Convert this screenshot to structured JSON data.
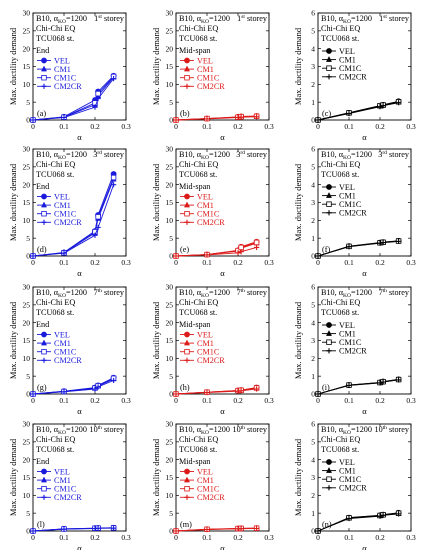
{
  "figure": {
    "ylabel": "Max. ductility demand",
    "xlabel": "α",
    "model": "B10, α",
    "model_sub": "KO",
    "model_tail": "=1200",
    "eq": "Chi-Chi EQ",
    "station": "TCU068 st.",
    "storey_suffix": "storey",
    "colors": {
      "end": "#1a1adc",
      "midspan": "#dc1a1a",
      "third": "#000000"
    },
    "legend": [
      "VEL",
      "CM1",
      "CM1C",
      "CM2CR"
    ],
    "markers": [
      "filled-circle",
      "filled-triangle",
      "open-square",
      "plus"
    ]
  },
  "chart_data": [
    {
      "type": "line",
      "panel": "(a)",
      "row": 0,
      "col": 0,
      "storey_num": "1",
      "storey_ord": "st",
      "location": "End",
      "color": "end",
      "xlim": [
        0,
        0.3
      ],
      "ylim": [
        0,
        30
      ],
      "xticks": [
        "0",
        "0.1",
        "0.2",
        "0.3"
      ],
      "yticks": [
        "0",
        "5",
        "10",
        "15",
        "20",
        "25",
        "30"
      ],
      "x": [
        0,
        0.1,
        0.2,
        0.21,
        0.26
      ],
      "series": [
        {
          "name": "VEL",
          "values": [
            0,
            0.9,
            5.6,
            8.0,
            12.4
          ]
        },
        {
          "name": "CM1",
          "values": [
            0,
            0.8,
            4.3,
            6.8,
            12.0
          ]
        },
        {
          "name": "CM1C",
          "values": [
            0,
            0.8,
            4.8,
            7.4,
            12.2
          ]
        },
        {
          "name": "CM2CR",
          "values": [
            0,
            0.7,
            3.6,
            6.0,
            11.6
          ]
        }
      ]
    },
    {
      "type": "line",
      "panel": "(b)",
      "row": 0,
      "col": 1,
      "storey_num": "1",
      "storey_ord": "st",
      "location": "Mid-span",
      "color": "midspan",
      "xlim": [
        0,
        0.3
      ],
      "ylim": [
        0,
        30
      ],
      "xticks": [
        "0",
        "0.1",
        "0.2",
        "0.3"
      ],
      "yticks": [
        "0",
        "5",
        "10",
        "15",
        "20",
        "25",
        "30"
      ],
      "x": [
        0,
        0.1,
        0.2,
        0.21,
        0.26
      ],
      "series": [
        {
          "name": "VEL",
          "values": [
            0,
            0.4,
            0.9,
            1.0,
            1.1
          ]
        },
        {
          "name": "CM1",
          "values": [
            0,
            0.4,
            0.8,
            0.9,
            1.0
          ]
        },
        {
          "name": "CM1C",
          "values": [
            0,
            0.4,
            0.8,
            0.95,
            1.05
          ]
        },
        {
          "name": "CM2CR",
          "values": [
            0,
            0.3,
            0.7,
            0.8,
            0.9
          ]
        }
      ]
    },
    {
      "type": "line",
      "panel": "(c)",
      "row": 0,
      "col": 2,
      "storey_num": "1",
      "storey_ord": "st",
      "location": "",
      "color": "third",
      "xlim": [
        0,
        0.3
      ],
      "ylim": [
        0,
        6
      ],
      "xticks": [
        "0",
        "0.1",
        "0.2",
        "0.3"
      ],
      "yticks": [
        "0",
        "1",
        "2",
        "3",
        "4",
        "5",
        "6"
      ],
      "x": [
        0,
        0.1,
        0.2,
        0.21,
        0.26
      ],
      "series": [
        {
          "name": "VEL",
          "values": [
            0,
            0.4,
            0.8,
            0.85,
            1.05
          ]
        },
        {
          "name": "CM1",
          "values": [
            0,
            0.38,
            0.78,
            0.82,
            1.0
          ]
        },
        {
          "name": "CM1C",
          "values": [
            0,
            0.4,
            0.8,
            0.84,
            1.02
          ]
        },
        {
          "name": "CM2CR",
          "values": [
            0,
            0.36,
            0.75,
            0.8,
            0.97
          ]
        }
      ]
    },
    {
      "type": "line",
      "panel": "(d)",
      "row": 1,
      "col": 0,
      "storey_num": "3",
      "storey_ord": "rd",
      "location": "End",
      "color": "end",
      "xlim": [
        0,
        0.3
      ],
      "ylim": [
        0,
        30
      ],
      "xticks": [
        "0",
        "0.1",
        "0.2",
        "0.3"
      ],
      "yticks": [
        "0",
        "5",
        "10",
        "15",
        "20",
        "25",
        "30"
      ],
      "x": [
        0,
        0.1,
        0.2,
        0.21,
        0.26
      ],
      "series": [
        {
          "name": "VEL",
          "values": [
            0,
            1.0,
            7.0,
            11.5,
            23.0
          ]
        },
        {
          "name": "CM1",
          "values": [
            0,
            0.9,
            6.5,
            10.5,
            21.5
          ]
        },
        {
          "name": "CM1C",
          "values": [
            0,
            0.9,
            6.8,
            11.0,
            22.0
          ]
        },
        {
          "name": "CM2CR",
          "values": [
            0,
            0.8,
            5.8,
            8.0,
            20.0
          ]
        }
      ]
    },
    {
      "type": "line",
      "panel": "(e)",
      "row": 1,
      "col": 1,
      "storey_num": "3",
      "storey_ord": "rd",
      "location": "Mid-span",
      "color": "midspan",
      "xlim": [
        0,
        0.3
      ],
      "ylim": [
        0,
        30
      ],
      "xticks": [
        "0",
        "0.1",
        "0.2",
        "0.3"
      ],
      "yticks": [
        "0",
        "5",
        "10",
        "15",
        "20",
        "25",
        "30"
      ],
      "x": [
        0,
        0.1,
        0.2,
        0.21,
        0.26
      ],
      "series": [
        {
          "name": "VEL",
          "values": [
            0,
            0.4,
            1.6,
            2.6,
            4.0
          ]
        },
        {
          "name": "CM1",
          "values": [
            0,
            0.4,
            1.4,
            2.2,
            3.6
          ]
        },
        {
          "name": "CM1C",
          "values": [
            0,
            0.4,
            1.5,
            2.4,
            3.8
          ]
        },
        {
          "name": "CM2CR",
          "values": [
            0,
            0.3,
            0.9,
            1.2,
            2.4
          ]
        }
      ]
    },
    {
      "type": "line",
      "panel": "(f)",
      "row": 1,
      "col": 2,
      "storey_num": "3",
      "storey_ord": "rd",
      "location": "",
      "color": "third",
      "xlim": [
        0,
        0.3
      ],
      "ylim": [
        0,
        6
      ],
      "xticks": [
        "0",
        "0.1",
        "0.2",
        "0.3"
      ],
      "yticks": [
        "0",
        "1",
        "2",
        "3",
        "4",
        "5",
        "6"
      ],
      "x": [
        0,
        0.1,
        0.2,
        0.21,
        0.26
      ],
      "series": [
        {
          "name": "VEL",
          "values": [
            0,
            0.55,
            0.75,
            0.78,
            0.85
          ]
        },
        {
          "name": "CM1",
          "values": [
            0,
            0.53,
            0.73,
            0.76,
            0.83
          ]
        },
        {
          "name": "CM1C",
          "values": [
            0,
            0.54,
            0.74,
            0.77,
            0.84
          ]
        },
        {
          "name": "CM2CR",
          "values": [
            0,
            0.52,
            0.72,
            0.75,
            0.82
          ]
        }
      ]
    },
    {
      "type": "line",
      "panel": "(g)",
      "row": 2,
      "col": 0,
      "storey_num": "7",
      "storey_ord": "th",
      "location": "End",
      "color": "end",
      "xlim": [
        0,
        0.3
      ],
      "ylim": [
        0,
        30
      ],
      "xticks": [
        "0",
        "0.1",
        "0.2",
        "0.3"
      ],
      "yticks": [
        "0",
        "5",
        "10",
        "15",
        "20",
        "25",
        "30"
      ],
      "x": [
        0,
        0.1,
        0.2,
        0.21,
        0.26
      ],
      "series": [
        {
          "name": "VEL",
          "values": [
            0,
            0.8,
            1.8,
            2.4,
            4.6
          ]
        },
        {
          "name": "CM1",
          "values": [
            0,
            0.7,
            1.6,
            2.2,
            4.2
          ]
        },
        {
          "name": "CM1C",
          "values": [
            0,
            0.7,
            1.7,
            2.3,
            4.4
          ]
        },
        {
          "name": "CM2CR",
          "values": [
            0,
            0.6,
            1.4,
            2.0,
            3.8
          ]
        }
      ]
    },
    {
      "type": "line",
      "panel": "(h)",
      "row": 2,
      "col": 1,
      "storey_num": "7",
      "storey_ord": "th",
      "location": "Mid-span",
      "color": "midspan",
      "xlim": [
        0,
        0.3
      ],
      "ylim": [
        0,
        30
      ],
      "xticks": [
        "0",
        "0.1",
        "0.2",
        "0.3"
      ],
      "yticks": [
        "0",
        "5",
        "10",
        "15",
        "20",
        "25",
        "30"
      ],
      "x": [
        0,
        0.1,
        0.2,
        0.21,
        0.26
      ],
      "series": [
        {
          "name": "VEL",
          "values": [
            0,
            0.5,
            1.0,
            1.1,
            1.8
          ]
        },
        {
          "name": "CM1",
          "values": [
            0,
            0.5,
            0.9,
            1.0,
            1.6
          ]
        },
        {
          "name": "CM1C",
          "values": [
            0,
            0.5,
            0.95,
            1.05,
            1.7
          ]
        },
        {
          "name": "CM2CR",
          "values": [
            0,
            0.4,
            0.8,
            0.9,
            1.4
          ]
        }
      ]
    },
    {
      "type": "line",
      "panel": "(i)",
      "row": 2,
      "col": 2,
      "storey_num": "7",
      "storey_ord": "th",
      "location": "",
      "color": "third",
      "xlim": [
        0,
        0.3
      ],
      "ylim": [
        0,
        6
      ],
      "xticks": [
        "0",
        "0.1",
        "0.2",
        "0.3"
      ],
      "yticks": [
        "0",
        "1",
        "2",
        "3",
        "4",
        "5",
        "6"
      ],
      "x": [
        0,
        0.1,
        0.2,
        0.21,
        0.26
      ],
      "series": [
        {
          "name": "VEL",
          "values": [
            0,
            0.5,
            0.65,
            0.7,
            0.82
          ]
        },
        {
          "name": "CM1",
          "values": [
            0,
            0.49,
            0.63,
            0.68,
            0.8
          ]
        },
        {
          "name": "CM1C",
          "values": [
            0,
            0.5,
            0.64,
            0.69,
            0.81
          ]
        },
        {
          "name": "CM2CR",
          "values": [
            0,
            0.48,
            0.62,
            0.67,
            0.79
          ]
        }
      ]
    },
    {
      "type": "line",
      "panel": "(l)",
      "row": 3,
      "col": 0,
      "storey_num": "10",
      "storey_ord": "th",
      "location": "End",
      "color": "end",
      "xlim": [
        0,
        0.3
      ],
      "ylim": [
        0,
        30
      ],
      "xticks": [
        "0",
        "0.1",
        "0.2",
        "0.3"
      ],
      "yticks": [
        "0",
        "5",
        "10",
        "15",
        "20",
        "25",
        "30"
      ],
      "x": [
        0,
        0.1,
        0.2,
        0.21,
        0.26
      ],
      "series": [
        {
          "name": "VEL",
          "values": [
            0,
            0.6,
            0.8,
            0.85,
            0.9
          ]
        },
        {
          "name": "CM1",
          "values": [
            0,
            0.55,
            0.75,
            0.8,
            0.85
          ]
        },
        {
          "name": "CM1C",
          "values": [
            0,
            0.58,
            0.78,
            0.82,
            0.88
          ]
        },
        {
          "name": "CM2CR",
          "values": [
            0,
            0.5,
            0.7,
            0.75,
            0.8
          ]
        }
      ]
    },
    {
      "type": "line",
      "panel": "(m)",
      "row": 3,
      "col": 1,
      "storey_num": "10",
      "storey_ord": "th",
      "location": "Mid-span",
      "color": "midspan",
      "xlim": [
        0,
        0.3
      ],
      "ylim": [
        0,
        30
      ],
      "xticks": [
        "0",
        "0.1",
        "0.2",
        "0.3"
      ],
      "yticks": [
        "0",
        "5",
        "10",
        "15",
        "20",
        "25",
        "30"
      ],
      "x": [
        0,
        0.1,
        0.2,
        0.21,
        0.26
      ],
      "series": [
        {
          "name": "VEL",
          "values": [
            0,
            0.5,
            0.7,
            0.75,
            0.8
          ]
        },
        {
          "name": "CM1",
          "values": [
            0,
            0.45,
            0.65,
            0.7,
            0.75
          ]
        },
        {
          "name": "CM1C",
          "values": [
            0,
            0.48,
            0.68,
            0.72,
            0.78
          ]
        },
        {
          "name": "CM2CR",
          "values": [
            0,
            0.4,
            0.6,
            0.65,
            0.7
          ]
        }
      ]
    },
    {
      "type": "line",
      "panel": "(n)",
      "row": 3,
      "col": 2,
      "storey_num": "10",
      "storey_ord": "th",
      "location": "",
      "color": "third",
      "xlim": [
        0,
        0.3
      ],
      "ylim": [
        0,
        6
      ],
      "xticks": [
        "0",
        "0.1",
        "0.2",
        "0.3"
      ],
      "yticks": [
        "0",
        "1",
        "2",
        "3",
        "4",
        "5",
        "6"
      ],
      "x": [
        0,
        0.1,
        0.2,
        0.21,
        0.26
      ],
      "series": [
        {
          "name": "VEL",
          "values": [
            0,
            0.75,
            0.88,
            0.92,
            1.02
          ]
        },
        {
          "name": "CM1",
          "values": [
            0,
            0.72,
            0.85,
            0.9,
            0.98
          ]
        },
        {
          "name": "CM1C",
          "values": [
            0,
            0.74,
            0.87,
            0.91,
            1.0
          ]
        },
        {
          "name": "CM2CR",
          "values": [
            0,
            0.7,
            0.83,
            0.88,
            0.96
          ]
        }
      ]
    }
  ]
}
